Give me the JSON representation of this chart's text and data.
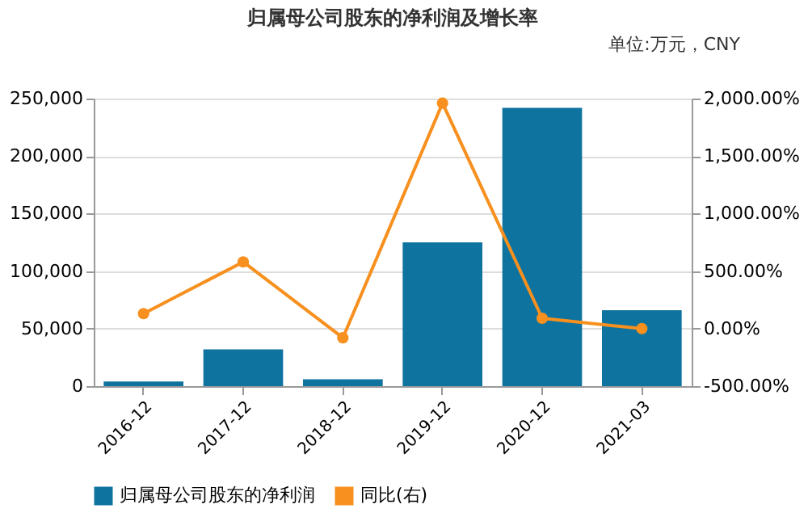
{
  "chart_data": {
    "type": "bar",
    "title": "归属母公司股东的净利润及增长率",
    "annotations": [
      "单位:万元，CNY"
    ],
    "categories": [
      "2016-12",
      "2017-12",
      "2018-12",
      "2019-12",
      "2020-12",
      "2021-03"
    ],
    "series": [
      {
        "name": "归属母公司股东的净利润",
        "color": "#0f73a0",
        "values": [
          4000,
          32000,
          6000,
          125000,
          242000,
          66000
        ]
      },
      {
        "name": "同比(右)",
        "color": "#f7901e",
        "type": "line",
        "axis": "y2",
        "marker": "circle",
        "values": [
          130,
          580,
          -80,
          1960,
          90,
          0
        ]
      }
    ],
    "ylim": [
      0,
      250000
    ],
    "yticks": [
      0,
      {
        "value": 50000,
        "label": "50,000"
      },
      {
        "value": 100000,
        "label": "100,000"
      },
      {
        "value": 150000,
        "label": "150,000"
      },
      {
        "value": 200000,
        "label": "200,000"
      },
      {
        "value": 250000,
        "label": "250,000"
      }
    ],
    "y2lim": [
      -500,
      2000
    ],
    "y2ticks": [
      {
        "value": -500,
        "label": "-500.00%"
      },
      {
        "value": 0,
        "label": "0.00%"
      },
      {
        "value": 500,
        "label": "500.00%"
      },
      {
        "value": 1000,
        "label": "1,000.00%"
      },
      {
        "value": 1500,
        "label": "1,500.00%"
      },
      {
        "value": 2000,
        "label": "2,000.00%"
      }
    ],
    "grid": "y",
    "legend": "bottom"
  }
}
